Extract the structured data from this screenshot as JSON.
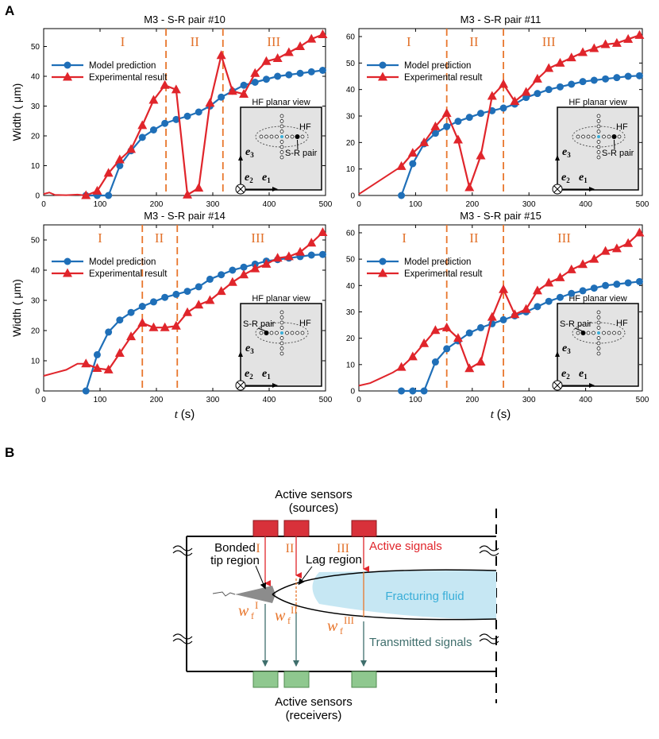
{
  "panel_labels": {
    "a": "A",
    "b": "B"
  },
  "colors": {
    "model": "#1f6fb8",
    "experiment": "#e0252b",
    "stage_line": "#e8762c",
    "stage_label": "#e2712a",
    "inset_bg": "#e3e3e3",
    "fluid": "#c6e7f3",
    "fluid_text": "#3aaed8",
    "source_box": "#d8313a",
    "receiver_box": "#8fc88f",
    "transmitted": "#3f6e6c"
  },
  "chart_data": [
    {
      "type": "line",
      "title": "M3 - S-R pair #10",
      "ylabel": "Width ( μm)",
      "xlabel": "",
      "xlim": [
        0,
        500
      ],
      "ylim": [
        0,
        56
      ],
      "xticks": [
        "0",
        "100",
        "200",
        "300",
        "400",
        "500"
      ],
      "yticks": [
        "0",
        "10",
        "20",
        "30",
        "40",
        "50"
      ],
      "stage_lines": [
        217,
        318
      ],
      "stage_labels": [
        "I",
        "II",
        "III"
      ],
      "stage_label_x": [
        140,
        268,
        408
      ],
      "legend": [
        "Model prediction",
        "Experimental result"
      ],
      "inset": {
        "title": "HF planar view",
        "labels": [
          "HF",
          "S-R pair"
        ],
        "sr_side": "right"
      },
      "series": [
        {
          "name": "Model prediction",
          "marker": "circle",
          "x": [
            75,
            95,
            115,
            135,
            155,
            175,
            195,
            215,
            235,
            255,
            275,
            295,
            315,
            335,
            355,
            375,
            395,
            415,
            435,
            455,
            475,
            495
          ],
          "y": [
            0,
            0,
            0,
            10,
            15,
            19.5,
            22,
            24.2,
            25.5,
            26.6,
            28,
            30,
            33,
            35,
            37,
            38,
            39,
            40,
            40.5,
            41,
            41.5,
            42
          ]
        },
        {
          "name": "Experimental result",
          "marker": "triangle",
          "x": [
            75,
            95,
            115,
            135,
            155,
            175,
            195,
            215,
            235,
            255,
            275,
            295,
            315,
            335,
            355,
            375,
            395,
            415,
            435,
            455,
            475,
            495
          ],
          "y": [
            0,
            1.5,
            7.5,
            12,
            15.5,
            23.5,
            32,
            37,
            35.5,
            0.2,
            2.5,
            31,
            47,
            35,
            34,
            41,
            45,
            46,
            48,
            50,
            52.5,
            54
          ],
          "lead_x": [
            0,
            10,
            20,
            40,
            60,
            75
          ],
          "lead_y": [
            0.5,
            1,
            0.2,
            0.1,
            0.3,
            0
          ]
        }
      ]
    },
    {
      "type": "line",
      "title": "M3 - S-R pair #11",
      "ylabel": "",
      "xlabel": "",
      "xlim": [
        0,
        500
      ],
      "ylim": [
        0,
        63
      ],
      "xticks": [
        "0",
        "100",
        "200",
        "300",
        "400",
        "500"
      ],
      "yticks": [
        "0",
        "10",
        "20",
        "30",
        "40",
        "50",
        "60"
      ],
      "stage_lines": [
        155,
        255
      ],
      "stage_labels": [
        "I",
        "II",
        "III"
      ],
      "stage_label_x": [
        88,
        203,
        335
      ],
      "legend": [
        "Model prediction",
        "Experimental result"
      ],
      "inset": {
        "title": "HF planar view",
        "labels": [
          "HF",
          "S-R pair"
        ],
        "sr_side": "right"
      },
      "series": [
        {
          "name": "Model prediction",
          "marker": "circle",
          "x": [
            75,
            95,
            115,
            135,
            155,
            175,
            195,
            215,
            235,
            255,
            275,
            295,
            315,
            335,
            355,
            375,
            395,
            415,
            435,
            455,
            475,
            495
          ],
          "y": [
            0,
            12,
            19.5,
            23.5,
            26,
            28,
            29.5,
            31,
            32,
            33,
            34.5,
            37,
            38.5,
            40,
            41,
            42,
            43,
            43.5,
            44,
            44.5,
            45,
            45.2
          ]
        },
        {
          "name": "Experimental result",
          "marker": "triangle",
          "x": [
            75,
            95,
            115,
            135,
            155,
            175,
            195,
            215,
            235,
            255,
            275,
            295,
            315,
            335,
            355,
            375,
            395,
            415,
            435,
            455,
            475,
            495
          ],
          "y": [
            11,
            16,
            20,
            26,
            31,
            21,
            3,
            15,
            37.5,
            42,
            35.5,
            39,
            44,
            48,
            50,
            52,
            54,
            55.5,
            57,
            57.5,
            59,
            60.5
          ],
          "lead_x": [
            0,
            75
          ],
          "lead_y": [
            0.5,
            11
          ]
        }
      ]
    },
    {
      "type": "line",
      "title": "M3 - S-R pair #14",
      "ylabel": "Width ( μm)",
      "xlabel": "t (s)",
      "xlim": [
        0,
        500
      ],
      "ylim": [
        0,
        55
      ],
      "xticks": [
        "0",
        "100",
        "200",
        "300",
        "400",
        "500"
      ],
      "yticks": [
        "0",
        "10",
        "20",
        "30",
        "40",
        "50"
      ],
      "stage_lines": [
        175,
        237
      ],
      "stage_labels": [
        "I",
        "II",
        "III"
      ],
      "stage_label_x": [
        100,
        205,
        380
      ],
      "legend": [
        "Model prediction",
        "Experimental result"
      ],
      "inset": {
        "title": "HF planar view",
        "labels": [
          "S-R pair",
          "HF"
        ],
        "sr_side": "left"
      },
      "series": [
        {
          "name": "Model prediction",
          "marker": "circle",
          "x": [
            75,
            95,
            115,
            135,
            155,
            175,
            195,
            215,
            235,
            255,
            275,
            295,
            315,
            335,
            355,
            375,
            395,
            415,
            435,
            455,
            475,
            495
          ],
          "y": [
            0,
            12,
            19.5,
            23.5,
            26,
            28,
            29.5,
            31,
            32,
            33,
            34.5,
            37,
            38.5,
            40,
            41,
            42,
            43,
            43.5,
            44,
            44.5,
            45,
            45.2
          ]
        },
        {
          "name": "Experimental result",
          "marker": "triangle",
          "x": [
            75,
            95,
            115,
            135,
            155,
            175,
            195,
            215,
            235,
            255,
            275,
            295,
            315,
            335,
            355,
            375,
            395,
            415,
            435,
            455,
            475,
            495
          ],
          "y": [
            9,
            7.5,
            7,
            12.5,
            18,
            22.5,
            21,
            21,
            21.5,
            26,
            28.5,
            30,
            33,
            36,
            38.5,
            40.5,
            42,
            44,
            44.5,
            46,
            49,
            52.5
          ],
          "lead_x": [
            0,
            20,
            40,
            60,
            75
          ],
          "lead_y": [
            5,
            6,
            7,
            9,
            9
          ]
        }
      ]
    },
    {
      "type": "line",
      "title": "M3 - S-R pair #15",
      "ylabel": "",
      "xlabel": "t (s)",
      "xlim": [
        0,
        500
      ],
      "ylim": [
        0,
        63
      ],
      "xticks": [
        "0",
        "100",
        "200",
        "300",
        "400",
        "500"
      ],
      "yticks": [
        "0",
        "10",
        "20",
        "30",
        "40",
        "50",
        "60"
      ],
      "stage_lines": [
        155,
        255
      ],
      "stage_labels": [
        "I",
        "II",
        "III"
      ],
      "stage_label_x": [
        80,
        203,
        362
      ],
      "legend": [
        "Model prediction",
        "Experimental result"
      ],
      "inset": {
        "title": "HF planar view",
        "labels": [
          "S-R pair",
          "HF"
        ],
        "sr_side": "left"
      },
      "series": [
        {
          "name": "Model prediction",
          "marker": "circle",
          "x": [
            75,
            95,
            115,
            135,
            155,
            175,
            195,
            215,
            235,
            255,
            275,
            295,
            315,
            335,
            355,
            375,
            395,
            415,
            435,
            455,
            475,
            495
          ],
          "y": [
            0,
            0,
            0,
            11,
            16,
            19,
            22,
            24,
            25.5,
            27,
            28.5,
            30,
            32,
            34,
            35.5,
            37,
            38,
            39,
            40,
            40.5,
            41,
            41.5
          ]
        },
        {
          "name": "Experimental result",
          "marker": "triangle",
          "x": [
            75,
            95,
            115,
            135,
            155,
            175,
            195,
            215,
            235,
            255,
            275,
            295,
            315,
            335,
            355,
            375,
            395,
            415,
            435,
            455,
            475,
            495
          ],
          "y": [
            9,
            13,
            18,
            23,
            24,
            20,
            8.5,
            11,
            28,
            38.5,
            29,
            31,
            38,
            41,
            43,
            46,
            48,
            50,
            53,
            54,
            56,
            60
          ],
          "lead_x": [
            0,
            20,
            40,
            60,
            75
          ],
          "lead_y": [
            2,
            3,
            5,
            7,
            9
          ]
        }
      ]
    }
  ],
  "diagram": {
    "top_title_line1": "Active sensors",
    "top_title_line2": "(sources)",
    "bottom_title_line1": "Active sensors",
    "bottom_title_line2": "(receivers)",
    "stage_labels": [
      "I",
      "II",
      "III"
    ],
    "bonded_line1": "Bonded",
    "bonded_line2": "tip region",
    "lag_region": "Lag region",
    "active_signals": "Active signals",
    "fracturing_fluid": "Fracturing fluid",
    "transmitted_signals": "Transmitted signals",
    "width_symbol": "w",
    "width_subscript": "f",
    "width_superscripts": [
      "I",
      "II",
      "III"
    ]
  }
}
